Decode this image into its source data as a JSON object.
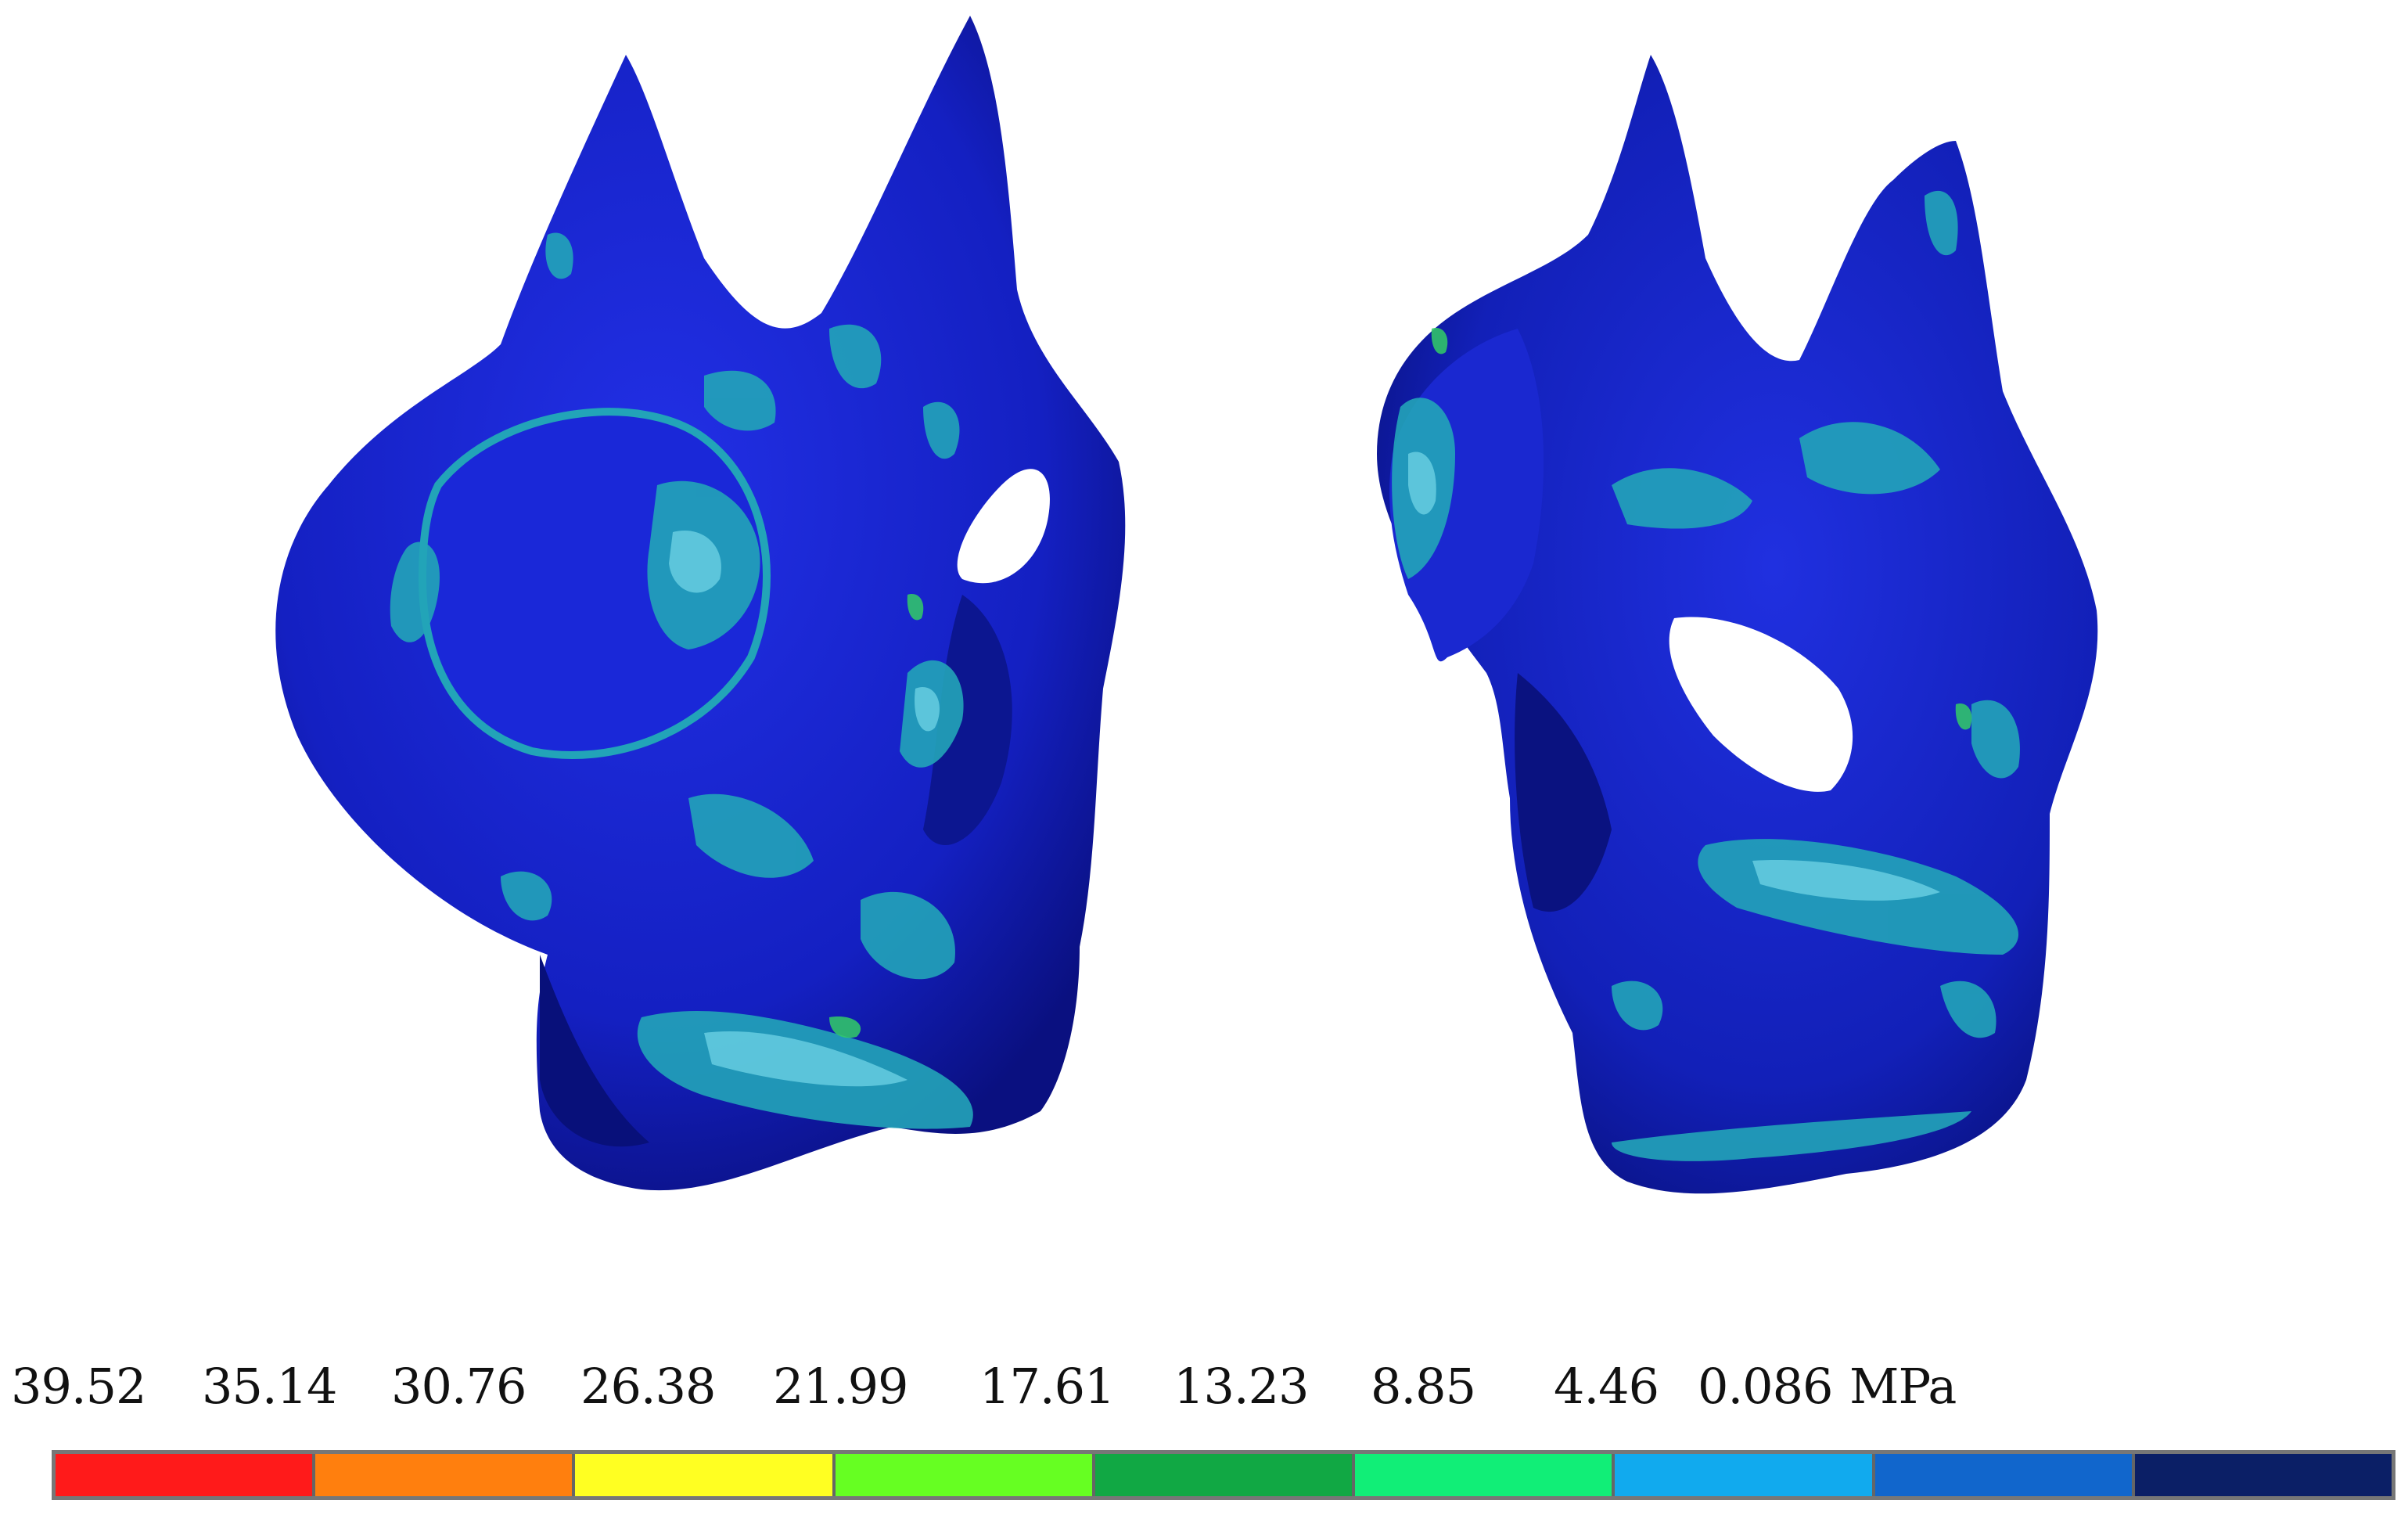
{
  "legend": {
    "ticks": [
      "39.52",
      "35.14",
      "30.76",
      "26.38",
      "21.99",
      "17.61",
      "13.23",
      "8.85",
      "4.46",
      "0.086"
    ],
    "unit": "MPa",
    "colors": [
      "#ff1a1a",
      "#ff7f0e",
      "#ffff22",
      "#66ff22",
      "#11a844",
      "#11ee77",
      "#11aaee",
      "#1166cc",
      "#0b1f66"
    ]
  },
  "palette": {
    "background": "#ffffff",
    "surface_blue": "#1822c8",
    "deep_blue": "#0a0f8a",
    "cyan_patch": "#22a4b8",
    "light_patch": "#66cce0",
    "green_patch": "#33cc66"
  }
}
